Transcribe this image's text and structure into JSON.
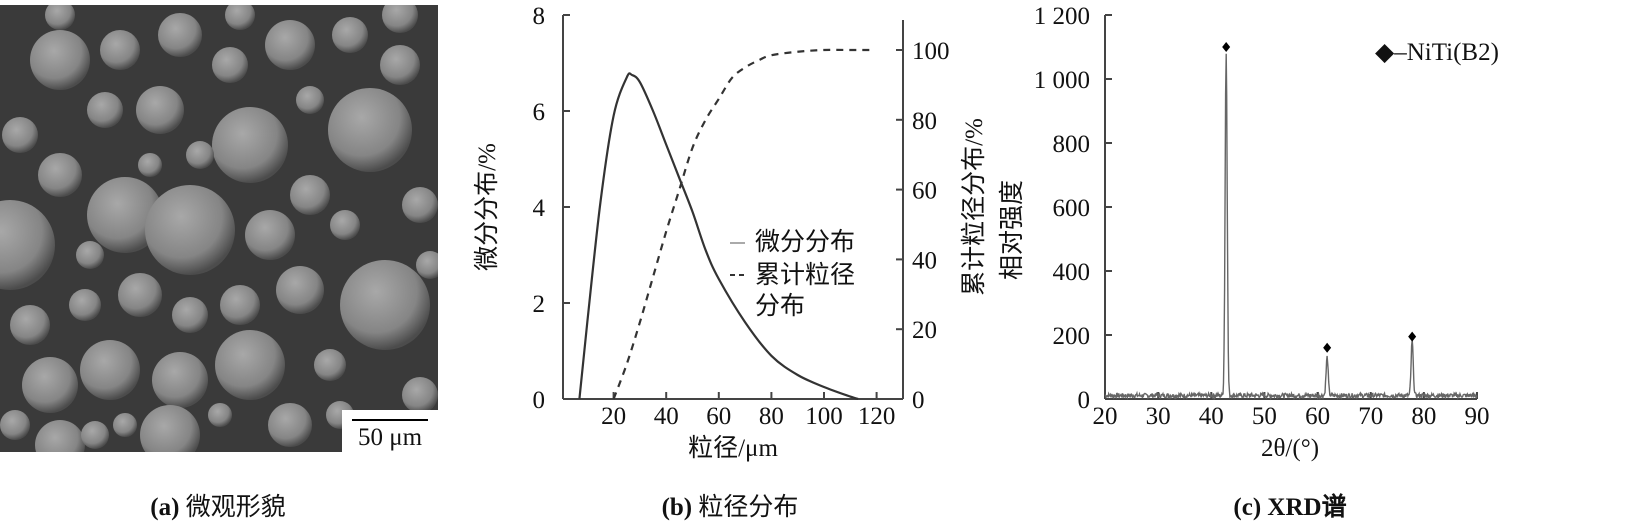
{
  "panels": {
    "a": {
      "caption_prefix": "(a)",
      "caption": "微观形貌",
      "scale_bar": "50 μm"
    },
    "b": {
      "caption_prefix": "(b)",
      "caption": "粒径分布"
    },
    "c": {
      "caption_prefix": "(c)",
      "caption": "XRD谱"
    }
  },
  "colors": {
    "line": "#333333",
    "peak": "#888888",
    "sem_bg": "#3a3a3a",
    "particle": "#8a8a8a"
  },
  "chart_data": [
    {
      "type": "line",
      "title": "粒径分布",
      "xlabel": "粒径/μm",
      "ylabel": "微分分布/%",
      "ylabel_right": "累计粒径分布/%",
      "xlim": [
        0,
        129
      ],
      "ylim": [
        0,
        8
      ],
      "ylim_right": [
        0,
        110
      ],
      "xticks": [
        "20",
        "40",
        "60",
        "80",
        "100",
        "120"
      ],
      "yticks": [
        "0",
        "2",
        "4",
        "6",
        "8"
      ],
      "yticks_right": [
        "0",
        "20",
        "40",
        "60",
        "80",
        "100"
      ],
      "legend": [
        "微分分布",
        "累计粒径",
        "分布"
      ],
      "legend_position": "center-right",
      "series": [
        {
          "name": "微分分布",
          "axis": "left",
          "style": "solid",
          "x": [
            7,
            10,
            15,
            20,
            25,
            27,
            30,
            35,
            40,
            45,
            50,
            55,
            60,
            70,
            80,
            90,
            100,
            110,
            113
          ],
          "y": [
            0,
            1.6,
            4.1,
            5.9,
            6.7,
            6.75,
            6.6,
            6.0,
            5.3,
            4.6,
            3.9,
            3.1,
            2.5,
            1.6,
            0.9,
            0.5,
            0.25,
            0.05,
            0
          ]
        },
        {
          "name": "累计粒径分布",
          "axis": "right",
          "style": "dashed",
          "x": [
            20,
            25,
            30,
            35,
            40,
            45,
            50,
            55,
            60,
            65,
            70,
            75,
            80,
            90,
            100,
            110,
            118
          ],
          "y": [
            0,
            10,
            22,
            35,
            48,
            60,
            72,
            80,
            86,
            92,
            95,
            97,
            98.5,
            99.5,
            100,
            100,
            100
          ]
        }
      ]
    },
    {
      "type": "line",
      "title": "XRD谱",
      "xlabel": "2θ/(°)",
      "ylabel": "相对强度",
      "xlim": [
        20,
        90
      ],
      "ylim": [
        0,
        1200
      ],
      "xticks": [
        "20",
        "30",
        "40",
        "50",
        "60",
        "70",
        "80",
        "90"
      ],
      "yticks": [
        "0",
        "200",
        "400",
        "600",
        "800",
        "1 000",
        "1 200"
      ],
      "legend": [
        "◆–NiTi(B2)"
      ],
      "legend_position": "top-right",
      "peaks": [
        {
          "x": 42.8,
          "y": 1070,
          "marker_y": 1100
        },
        {
          "x": 61.8,
          "y": 120,
          "marker_y": 160
        },
        {
          "x": 77.8,
          "y": 170,
          "marker_y": 195
        }
      ],
      "baseline": 10
    }
  ]
}
